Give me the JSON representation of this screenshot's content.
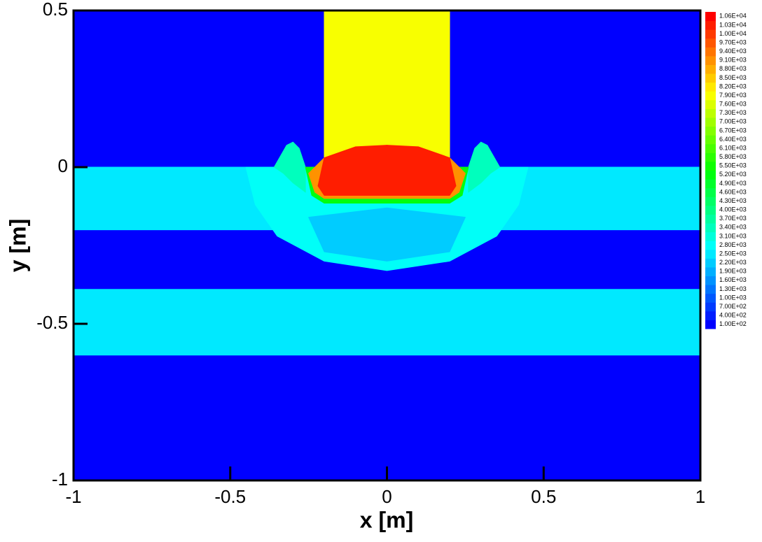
{
  "chart_data": {
    "type": "contour",
    "xlabel": "x [m]",
    "ylabel": "y [m]",
    "xlim": [
      -1,
      1
    ],
    "ylim": [
      -1,
      0.5
    ],
    "xticks": [
      -1,
      -0.5,
      0,
      0.5,
      1
    ],
    "yticks": [
      -1,
      -0.5,
      0,
      0.5
    ],
    "levels": [
      {
        "value": 100,
        "label": "1.00E+02"
      },
      {
        "value": 400,
        "label": "4.00E+02"
      },
      {
        "value": 700,
        "label": "7.00E+02"
      },
      {
        "value": 1000,
        "label": "1.00E+03"
      },
      {
        "value": 1300,
        "label": "1.30E+03"
      },
      {
        "value": 1600,
        "label": "1.60E+03"
      },
      {
        "value": 1900,
        "label": "1.90E+03"
      },
      {
        "value": 2200,
        "label": "2.20E+03"
      },
      {
        "value": 2500,
        "label": "2.50E+03"
      },
      {
        "value": 2800,
        "label": "2.80E+03"
      },
      {
        "value": 3100,
        "label": "3.10E+03"
      },
      {
        "value": 3400,
        "label": "3.40E+03"
      },
      {
        "value": 3700,
        "label": "3.70E+03"
      },
      {
        "value": 4000,
        "label": "4.00E+03"
      },
      {
        "value": 4300,
        "label": "4.30E+03"
      },
      {
        "value": 4600,
        "label": "4.60E+03"
      },
      {
        "value": 4900,
        "label": "4.90E+03"
      },
      {
        "value": 5200,
        "label": "5.20E+03"
      },
      {
        "value": 5500,
        "label": "5.50E+03"
      },
      {
        "value": 5800,
        "label": "5.80E+03"
      },
      {
        "value": 6100,
        "label": "6.10E+03"
      },
      {
        "value": 6400,
        "label": "6.40E+03"
      },
      {
        "value": 6700,
        "label": "6.70E+03"
      },
      {
        "value": 7000,
        "label": "7.00E+03"
      },
      {
        "value": 7300,
        "label": "7.30E+03"
      },
      {
        "value": 7600,
        "label": "7.60E+03"
      },
      {
        "value": 7900,
        "label": "7.90E+03"
      },
      {
        "value": 8200,
        "label": "8.20E+03"
      },
      {
        "value": 8500,
        "label": "8.50E+03"
      },
      {
        "value": 8800,
        "label": "8.80E+03"
      },
      {
        "value": 9100,
        "label": "9.10E+03"
      },
      {
        "value": 9400,
        "label": "9.40E+03"
      },
      {
        "value": 9700,
        "label": "9.70E+03"
      },
      {
        "value": 10000,
        "label": "1.00E+04"
      },
      {
        "value": 10300,
        "label": "1.03E+04"
      },
      {
        "value": 10600,
        "label": "1.06E+04"
      }
    ],
    "regions": [
      {
        "value": 100,
        "x": [
          -1,
          1,
          1,
          -1
        ],
        "y": [
          0.5,
          0.5,
          -1,
          -1
        ]
      },
      {
        "value": 2500,
        "x": [
          -1,
          1,
          1,
          -1
        ],
        "y": [
          0,
          0,
          -0.2,
          -0.2
        ]
      },
      {
        "value": 2500,
        "x": [
          -1,
          1,
          1,
          -1
        ],
        "y": [
          -0.39,
          -0.39,
          -0.6,
          -0.6
        ]
      },
      {
        "value": 2800,
        "x": [
          -0.45,
          -0.42,
          -0.35,
          -0.2,
          0,
          0.2,
          0.35,
          0.42,
          0.45
        ],
        "y": [
          0,
          -0.12,
          -0.22,
          -0.3,
          -0.33,
          -0.3,
          -0.22,
          -0.12,
          0
        ]
      },
      {
        "value": 2200,
        "x": [
          -0.25,
          0,
          0.25,
          0.2,
          0,
          -0.2
        ],
        "y": [
          -0.16,
          -0.13,
          -0.16,
          -0.27,
          -0.3,
          -0.27
        ]
      },
      {
        "value": 3400,
        "x": [
          -0.36,
          -0.32,
          -0.3,
          -0.28,
          -0.26,
          -0.26,
          -0.3,
          -0.33
        ],
        "y": [
          0,
          0.07,
          0.08,
          0.06,
          0,
          -0.08,
          -0.05,
          -0.02
        ]
      },
      {
        "value": 3400,
        "x": [
          0.36,
          0.32,
          0.3,
          0.28,
          0.26,
          0.26,
          0.3,
          0.33
        ],
        "y": [
          0,
          0.07,
          0.08,
          0.06,
          0,
          -0.08,
          -0.05,
          -0.02
        ]
      },
      {
        "value": 7900,
        "x": [
          -0.2,
          0.2,
          0.2,
          -0.2
        ],
        "y": [
          0.5,
          0.5,
          -0.05,
          -0.05
        ]
      },
      {
        "value": 5200,
        "x": [
          -0.26,
          -0.24,
          -0.2,
          0.2,
          0.24,
          0.26,
          0.2,
          -0.2
        ],
        "y": [
          0,
          -0.09,
          -0.115,
          -0.115,
          -0.09,
          0,
          0,
          0
        ]
      },
      {
        "value": 9100,
        "x": [
          -0.25,
          -0.23,
          -0.2,
          0.2,
          0.23,
          0.25,
          0.2,
          0,
          -0.2
        ],
        "y": [
          -0.02,
          -0.08,
          -0.1,
          -0.1,
          -0.08,
          -0.02,
          0.03,
          0.07,
          0.03
        ]
      },
      {
        "value": 10300,
        "x": [
          -0.2,
          -0.1,
          0,
          0.1,
          0.2,
          0.22,
          0.2,
          -0.2,
          -0.22
        ],
        "y": [
          0.03,
          0.065,
          0.07,
          0.065,
          0.03,
          -0.06,
          -0.09,
          -0.09,
          -0.06
        ]
      }
    ]
  }
}
